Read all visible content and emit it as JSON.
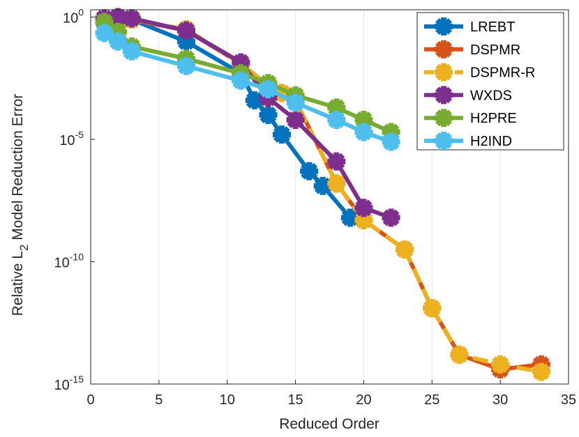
{
  "chart_data": {
    "type": "line",
    "title": "",
    "xlabel": "Reduced Order",
    "ylabel": "Relative L",
    "ylabel_sub": "2",
    "ylabel_suffix": "Model Reduction Error",
    "xlim": [
      0,
      35
    ],
    "ylim_log10": [
      -15,
      0.3
    ],
    "x_ticks": [
      0,
      5,
      10,
      15,
      20,
      25,
      30,
      35
    ],
    "y_ticks": [
      {
        "exp": 0,
        "base": "10",
        "sup": "0"
      },
      {
        "exp": -5,
        "base": "10",
        "sup": "-5"
      },
      {
        "exp": -10,
        "base": "10",
        "sup": "-10"
      },
      {
        "exp": -15,
        "base": "10",
        "sup": "-15"
      }
    ],
    "grid": "x",
    "legend_position": "top-right",
    "series": [
      {
        "name": "LREBT",
        "color": "#0072BD",
        "dash": "solid",
        "x": [
          1,
          2,
          3,
          7,
          11,
          12,
          13,
          14,
          16,
          17,
          19
        ],
        "y_log10": [
          -0.15,
          -0.05,
          -0.1,
          -1.0,
          -2.3,
          -3.4,
          -4.0,
          -4.8,
          -6.3,
          -6.9,
          -8.2
        ]
      },
      {
        "name": "DSPMR",
        "color": "#D95319",
        "dash": "solid",
        "x": [
          1,
          2,
          3,
          7,
          11,
          13,
          14,
          15,
          18,
          20,
          23,
          25,
          27,
          30,
          33
        ],
        "y_log10": [
          -0.2,
          -0.05,
          -0.1,
          -0.55,
          -1.9,
          -2.8,
          -3.1,
          -3.4,
          -6.8,
          -8.3,
          -9.5,
          -11.9,
          -13.8,
          -14.4,
          -14.2
        ]
      },
      {
        "name": "DSPMR-R",
        "color": "#EDB120",
        "dash": "dashed",
        "x": [
          1,
          2,
          3,
          7,
          11,
          13,
          14,
          15,
          18,
          20,
          23,
          25,
          27,
          30,
          33
        ],
        "y_log10": [
          -0.2,
          -0.05,
          -0.1,
          -0.5,
          -1.9,
          -2.8,
          -3.1,
          -3.4,
          -6.8,
          -8.3,
          -9.5,
          -11.9,
          -13.8,
          -14.2,
          -14.5
        ]
      },
      {
        "name": "WXDS",
        "color": "#7E2F8E",
        "dash": "solid",
        "x": [
          1,
          2,
          3,
          7,
          11,
          13,
          15,
          18,
          20,
          22
        ],
        "y_log10": [
          -0.05,
          0.0,
          -0.05,
          -0.55,
          -1.85,
          -3.3,
          -4.2,
          -5.9,
          -7.8,
          -8.2
        ]
      },
      {
        "name": "H2PRE",
        "color": "#77AC30",
        "dash": "solid",
        "x": [
          1,
          2,
          3,
          7,
          11,
          13,
          15,
          18,
          20,
          22
        ],
        "y_log10": [
          -0.2,
          -0.6,
          -1.2,
          -1.7,
          -2.3,
          -2.7,
          -3.2,
          -3.7,
          -4.2,
          -4.7
        ]
      },
      {
        "name": "H2IND",
        "color": "#4DBEEE",
        "dash": "solid",
        "x": [
          1,
          2,
          3,
          7,
          11,
          13,
          15,
          18,
          20,
          22
        ],
        "y_log10": [
          -0.65,
          -1.0,
          -1.4,
          -2.0,
          -2.6,
          -2.95,
          -3.5,
          -4.2,
          -4.7,
          -5.1
        ]
      }
    ]
  }
}
